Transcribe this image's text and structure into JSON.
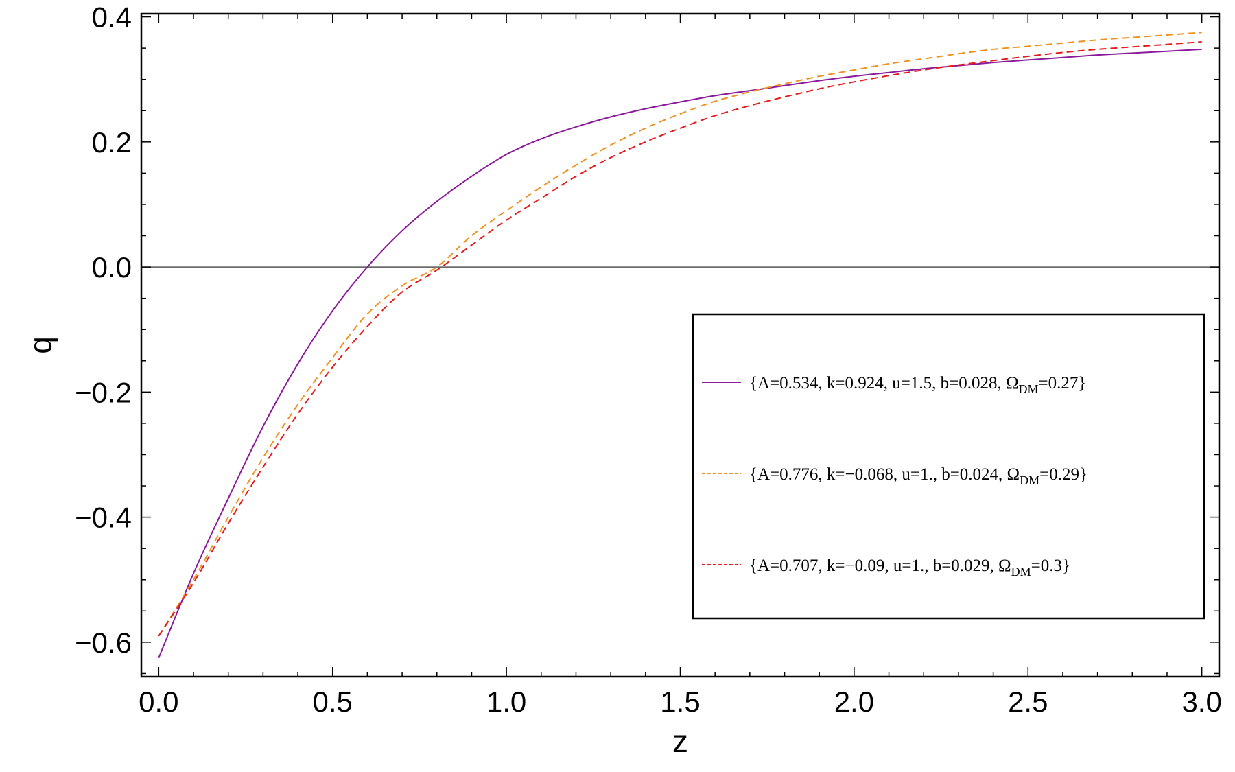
{
  "chart_data": {
    "type": "line",
    "xlabel": "z",
    "ylabel": "q",
    "xlim": [
      -0.05,
      3.05
    ],
    "ylim": [
      -0.655,
      0.405
    ],
    "x_ticks": [
      0.0,
      0.5,
      1.0,
      1.5,
      2.0,
      2.5,
      3.0
    ],
    "x_tick_labels": [
      "0.0",
      "0.5",
      "1.0",
      "1.5",
      "2.0",
      "2.5",
      "3.0"
    ],
    "y_ticks": [
      -0.6,
      -0.4,
      -0.2,
      0.0,
      0.2,
      0.4
    ],
    "y_tick_labels": [
      "−0.6",
      "−0.4",
      "−0.2",
      "0.0",
      "0.2",
      "0.4"
    ],
    "grid": false,
    "zero_line": true,
    "legend_position": "lower-right",
    "x": [
      0.0,
      0.1,
      0.2,
      0.3,
      0.4,
      0.5,
      0.6,
      0.7,
      0.8,
      0.9,
      1.0,
      1.1,
      1.2,
      1.3,
      1.4,
      1.5,
      1.6,
      1.7,
      1.8,
      1.9,
      2.0,
      2.1,
      2.2,
      2.3,
      2.4,
      2.5,
      2.6,
      2.7,
      2.8,
      2.9,
      3.0
    ],
    "series": [
      {
        "legend_prefix": "{A=0.534, k=0.924, u=1.5, b=0.028, Ω",
        "legend_sub": "DM",
        "legend_suffix": "=0.27}",
        "color": "#8b1a9b",
        "dash": "",
        "values": [
          -0.625,
          -0.49,
          -0.37,
          -0.255,
          -0.155,
          -0.07,
          0.0,
          0.058,
          0.105,
          0.145,
          0.18,
          0.205,
          0.224,
          0.24,
          0.253,
          0.264,
          0.274,
          0.282,
          0.29,
          0.298,
          0.305,
          0.311,
          0.317,
          0.322,
          0.327,
          0.331,
          0.335,
          0.339,
          0.342,
          0.345,
          0.348
        ]
      },
      {
        "legend_prefix": "{A=0.776, k=−0.068, u=1., b=0.024, Ω",
        "legend_sub": "DM",
        "legend_suffix": "=0.29}",
        "color": "#f0901e",
        "dash": "10,6",
        "values": [
          -0.59,
          -0.5,
          -0.4,
          -0.305,
          -0.22,
          -0.145,
          -0.075,
          -0.03,
          0.0,
          0.05,
          0.09,
          0.128,
          0.163,
          0.195,
          0.222,
          0.245,
          0.265,
          0.28,
          0.293,
          0.305,
          0.315,
          0.325,
          0.333,
          0.341,
          0.348,
          0.353,
          0.358,
          0.363,
          0.367,
          0.371,
          0.375
        ]
      },
      {
        "legend_prefix": "{A=0.707, k=−0.09, u=1., b=0.029, Ω",
        "legend_sub": "DM",
        "legend_suffix": "=0.3}",
        "color": "#e41a1c",
        "dash": "10,6",
        "values": [
          -0.59,
          -0.505,
          -0.41,
          -0.32,
          -0.235,
          -0.16,
          -0.095,
          -0.04,
          -0.005,
          0.035,
          0.075,
          0.11,
          0.145,
          0.175,
          0.2,
          0.222,
          0.242,
          0.258,
          0.272,
          0.285,
          0.296,
          0.306,
          0.315,
          0.323,
          0.33,
          0.337,
          0.343,
          0.348,
          0.352,
          0.356,
          0.36
        ]
      }
    ]
  }
}
